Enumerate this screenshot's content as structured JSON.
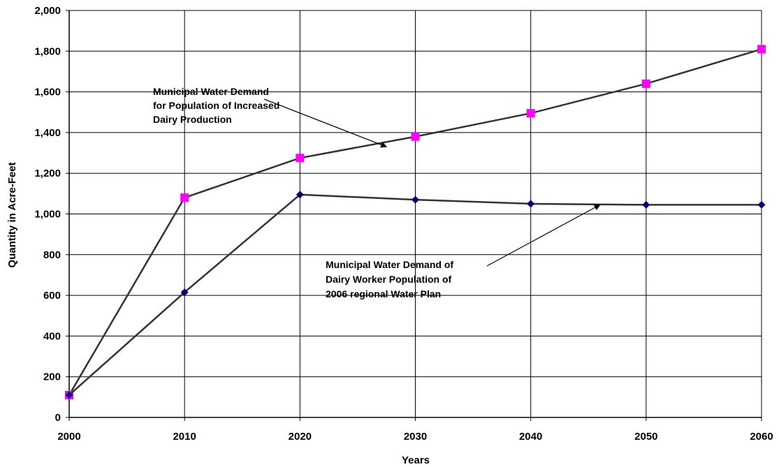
{
  "chart_data": {
    "type": "line",
    "title": "",
    "xlabel": "Years",
    "ylabel": "Quantity in Acre-Feet",
    "x": [
      2000,
      2010,
      2020,
      2030,
      2040,
      2050,
      2060
    ],
    "xlim": [
      2000,
      2060
    ],
    "ylim": [
      0,
      2000
    ],
    "y_ticks": [
      0,
      200,
      400,
      600,
      800,
      1000,
      1200,
      1400,
      1600,
      1800,
      2000
    ],
    "y_tick_labels": [
      "0",
      "200",
      "400",
      "600",
      "800",
      "1,000",
      "1,200",
      "1,400",
      "1,600",
      "1,800",
      "2,000"
    ],
    "x_tick_labels": [
      "2000",
      "2010",
      "2020",
      "2030",
      "2040",
      "2050",
      "2060"
    ],
    "grid": true,
    "legend": "none",
    "series": [
      {
        "values": [
          110,
          1080,
          1275,
          1380,
          1495,
          1640,
          1810
        ],
        "color": "#333333",
        "marker": "square",
        "marker_color": "#ff00ff"
      },
      {
        "values": [
          110,
          615,
          1095,
          1070,
          1050,
          1045,
          1045
        ],
        "color": "#333333",
        "marker": "diamond",
        "marker_color": "#000080"
      }
    ],
    "annotations": [
      {
        "lines": [
          "Municipal Water Demand",
          "for Population of Increased",
          "Dairy Production"
        ],
        "series": 0,
        "arrow_to_x": 2027.5,
        "arrow_to_y": 1330
      },
      {
        "lines": [
          "Municipal Water Demand of",
          "Dairy Worker Population of",
          "2006 regional Water Plan"
        ],
        "series": 1,
        "arrow_to_x": 2046,
        "arrow_to_y": 1045
      }
    ]
  }
}
